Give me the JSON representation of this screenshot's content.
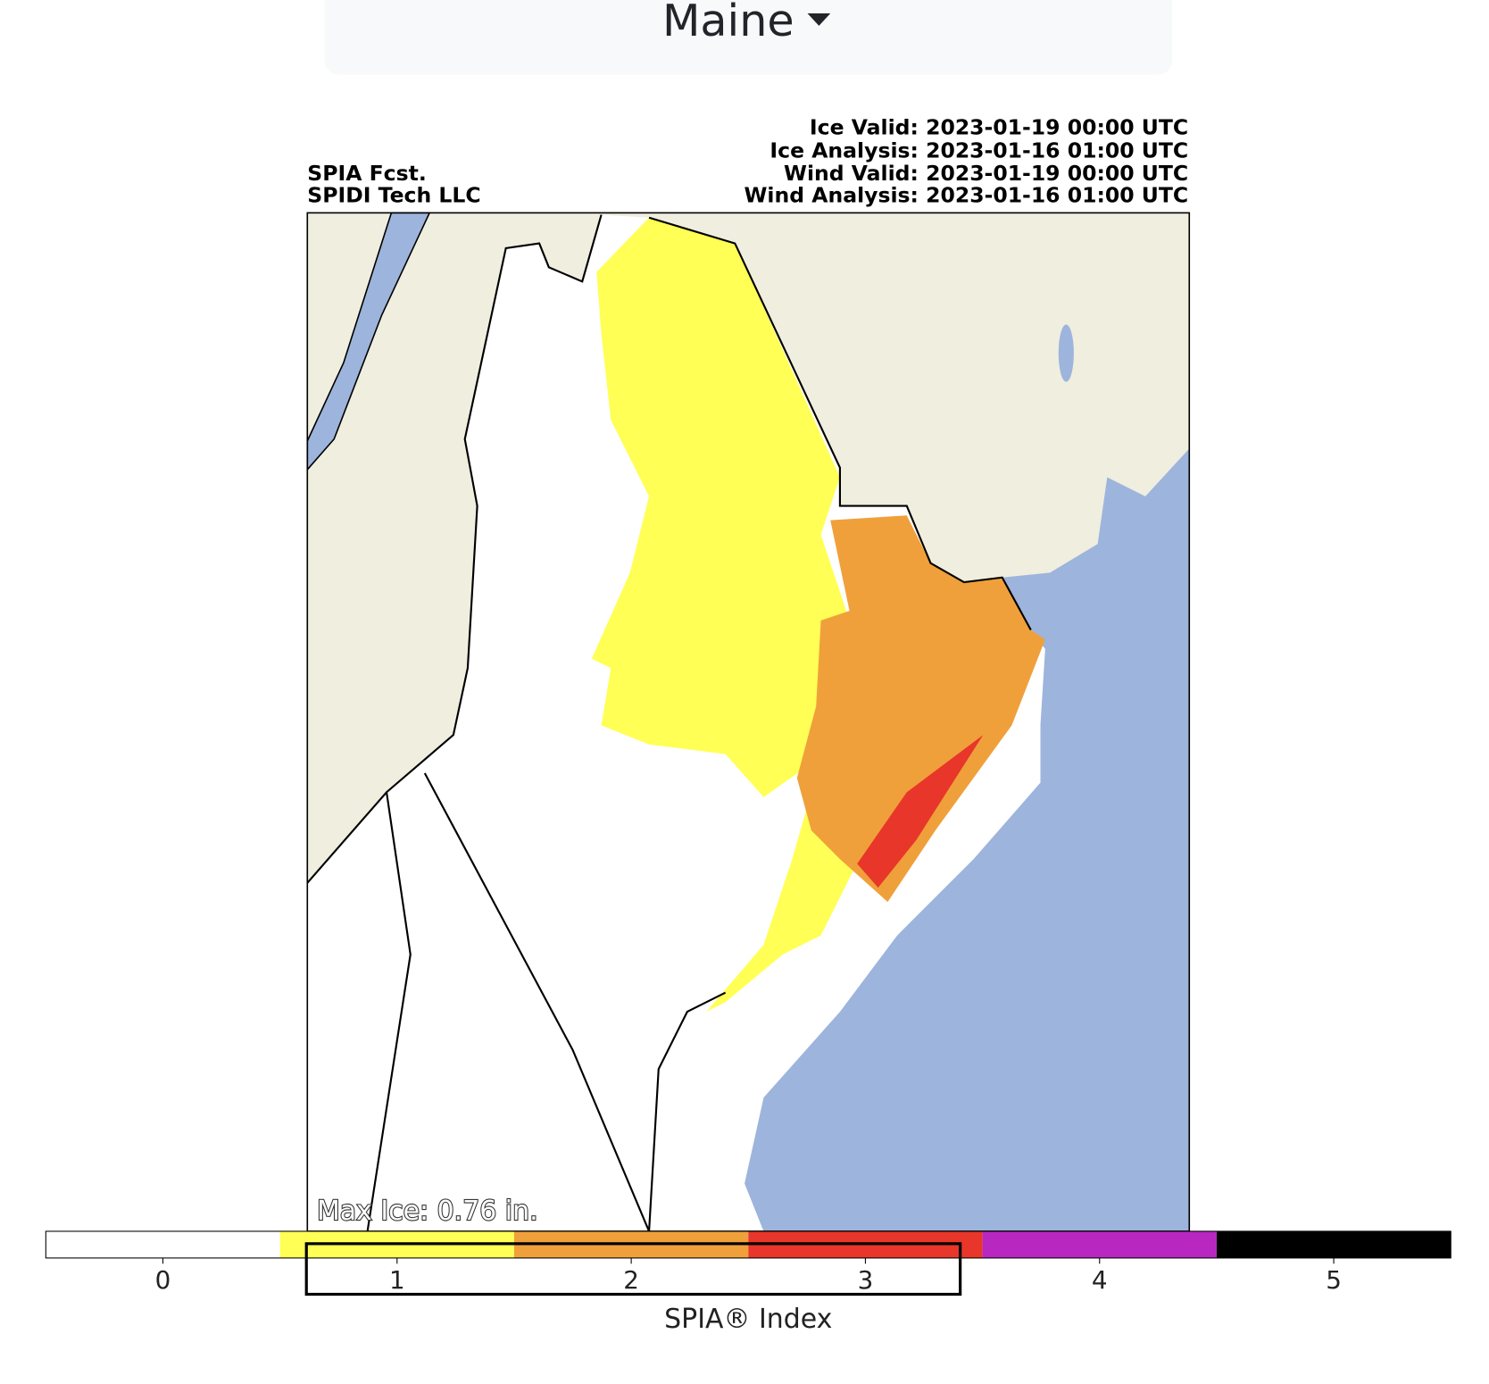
{
  "dropdown": {
    "label": "Maine"
  },
  "header": {
    "left": [
      "SPIA Fcst.",
      "SPIDI Tech LLC"
    ],
    "right": [
      "Ice Valid: 2023-01-19 00:00 UTC",
      "Ice Analysis: 2023-01-16 01:00 UTC",
      "Wind Valid: 2023-01-19 00:00 UTC",
      "Wind Analysis: 2023-01-16 01:00 UTC"
    ]
  },
  "map": {
    "annotation": "Max Ice: 0.76 in."
  },
  "colorbar": {
    "label": "SPIA® Index",
    "lim": [
      -0.5,
      5.5
    ],
    "ticks": [
      0,
      1,
      2,
      3,
      4,
      5
    ],
    "colors": [
      "#ffffff",
      "#ffff55",
      "#f0a03a",
      "#e8362a",
      "#b828c0",
      "#000000"
    ]
  }
}
